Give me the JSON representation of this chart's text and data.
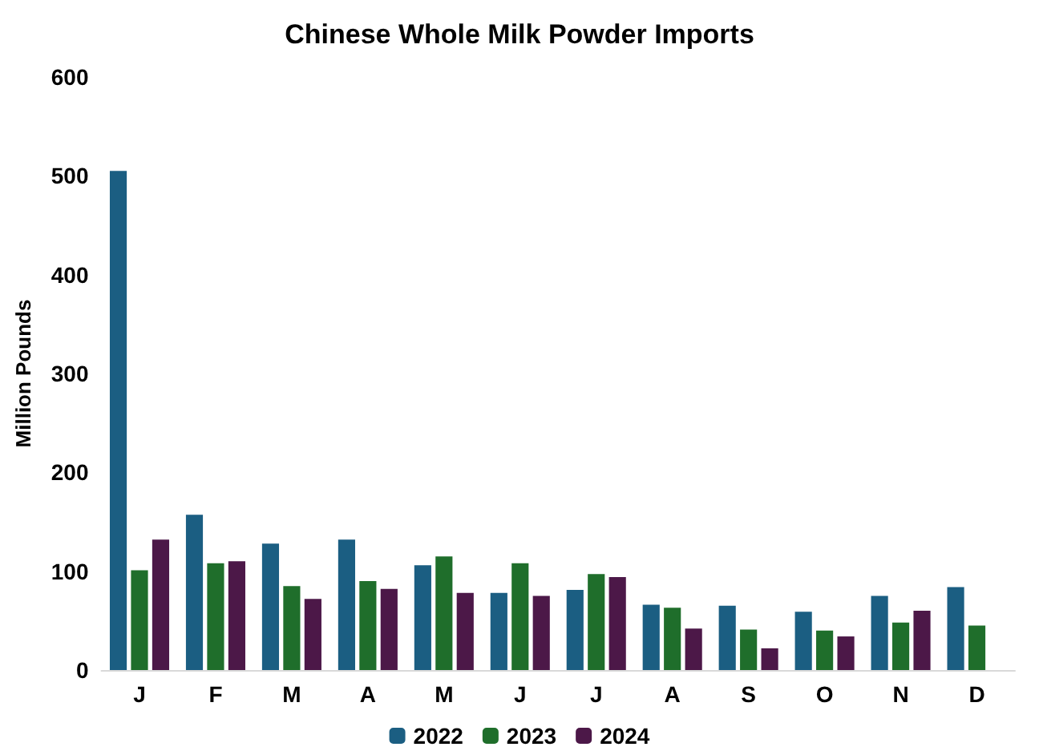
{
  "chart_data": {
    "type": "bar",
    "title": "Chinese Whole Milk Powder Imports",
    "ylabel": "Million Pounds",
    "categories": [
      "J",
      "F",
      "M",
      "A",
      "M",
      "J",
      "J",
      "A",
      "S",
      "O",
      "N",
      "D"
    ],
    "series": [
      {
        "name": "2022",
        "color": "#1b5e82",
        "values": [
          505,
          157,
          128,
          132,
          106,
          78,
          81,
          66,
          65,
          59,
          75,
          84
        ]
      },
      {
        "name": "2023",
        "color": "#1f6e2b",
        "values": [
          101,
          108,
          85,
          90,
          115,
          108,
          97,
          63,
          41,
          40,
          48,
          45
        ]
      },
      {
        "name": "2024",
        "color": "#4c1848",
        "values": [
          132,
          110,
          72,
          82,
          78,
          75,
          94,
          42,
          22,
          34,
          60,
          null
        ]
      }
    ],
    "ylim": [
      0,
      600
    ],
    "yticks": [
      0,
      100,
      200,
      300,
      400,
      500,
      600
    ],
    "grid": false,
    "legend": "bottom"
  }
}
